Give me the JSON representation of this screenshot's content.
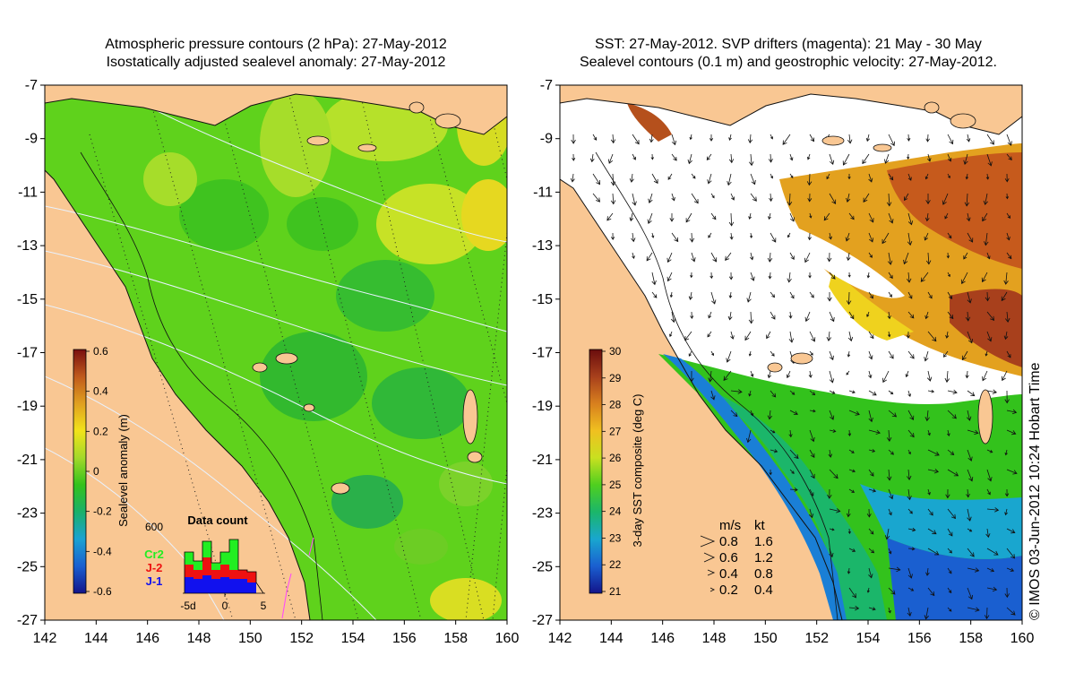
{
  "left_panel": {
    "title_line1": "Atmospheric pressure contours (2 hPa): 27-May-2012",
    "title_line2": "Isostatically adjusted sealevel anomaly: 27-May-2012",
    "colorbar": {
      "label": "Sealevel anomaly (m)",
      "ticks": [
        "0.6",
        "0.4",
        "0.2",
        "0",
        "-0.2",
        "-0.4",
        "-0.6"
      ],
      "colors": [
        "#7a0f0f",
        "#c05a1c",
        "#e0a020",
        "#f2e31a",
        "#a3d92a",
        "#33c21c",
        "#19b06a",
        "#1aa2d2",
        "#1a5fd0",
        "#13148a"
      ]
    },
    "data_count": {
      "title": "Data count",
      "y_max_label": "600",
      "x_labels": [
        "-5d",
        "0",
        "5"
      ],
      "legend": [
        {
          "label": "Cr2",
          "color": "#22ee22"
        },
        {
          "label": "J-2",
          "color": "#ee1111"
        },
        {
          "label": "J-1",
          "color": "#1111ee"
        }
      ]
    }
  },
  "right_panel": {
    "title_line1": "SST: 27-May-2012. SVP drifters (magenta): 21 May - 30 May",
    "title_line2": "Sealevel contours (0.1 m) and geostrophic velocity: 27-May-2012.",
    "colorbar": {
      "label": "3-day SST composite (deg C)",
      "ticks": [
        "30",
        "29",
        "28",
        "27",
        "26",
        "25",
        "24",
        "23",
        "22",
        "21"
      ],
      "colors": [
        "#6a0d0d",
        "#a8401c",
        "#d8801e",
        "#f0c020",
        "#c9e020",
        "#4fcf1f",
        "#1bb66a",
        "#19a6cf",
        "#1a5fd0",
        "#13148a"
      ]
    },
    "velocity_legend": {
      "header_ms": "m/s",
      "header_kt": "kt",
      "rows": [
        {
          "ms": "0.8",
          "kt": "1.6"
        },
        {
          "ms": "0.6",
          "kt": "1.2"
        },
        {
          "ms": "0.4",
          "kt": "0.8"
        },
        {
          "ms": "0.2",
          "kt": "0.4"
        }
      ]
    }
  },
  "axes": {
    "lat_labels": [
      "-7",
      "-9",
      "-11",
      "-13",
      "-15",
      "-17",
      "-19",
      "-21",
      "-23",
      "-25",
      "-27"
    ],
    "lon_labels": [
      "142",
      "144",
      "146",
      "148",
      "150",
      "152",
      "154",
      "156",
      "158",
      "160"
    ]
  },
  "credit": "© IMOS 03-Jun-2012 10:24 Hobart Time",
  "colors": {
    "land": "#f9c793",
    "ocean_green": "#5fd21c",
    "cloud": "#ffffff"
  }
}
